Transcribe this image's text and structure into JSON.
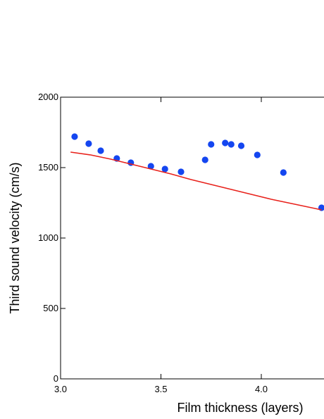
{
  "chart_data": {
    "type": "scatter",
    "xlabel": "Film thickness  (layers)",
    "ylabel": "Third sound velocity  (cm/s)",
    "xlim": [
      3.0,
      4.3
    ],
    "ylim": [
      0,
      2000
    ],
    "x_ticks": [
      3.0,
      3.5,
      4.0
    ],
    "x_tick_labels": [
      "3.0",
      "3.5",
      "4.0"
    ],
    "y_ticks": [
      0,
      500,
      1000,
      1500,
      2000
    ],
    "y_tick_labels": [
      "0",
      "500",
      "1000",
      "1500",
      "2000"
    ],
    "grid": false,
    "series": [
      {
        "mode": "markers",
        "color": "#1446f0",
        "points": [
          [
            3.07,
            1720
          ],
          [
            3.14,
            1670
          ],
          [
            3.2,
            1620
          ],
          [
            3.28,
            1565
          ],
          [
            3.35,
            1535
          ],
          [
            3.45,
            1510
          ],
          [
            3.52,
            1490
          ],
          [
            3.6,
            1470
          ],
          [
            3.72,
            1555
          ],
          [
            3.75,
            1665
          ],
          [
            3.82,
            1675
          ],
          [
            3.85,
            1665
          ],
          [
            3.9,
            1655
          ],
          [
            3.98,
            1590
          ],
          [
            4.11,
            1465
          ],
          [
            4.3,
            1215
          ]
        ]
      },
      {
        "mode": "line",
        "color": "#e8211b",
        "points": [
          [
            3.05,
            1610
          ],
          [
            3.15,
            1590
          ],
          [
            3.25,
            1560
          ],
          [
            3.35,
            1525
          ],
          [
            3.45,
            1490
          ],
          [
            3.55,
            1455
          ],
          [
            3.65,
            1415
          ],
          [
            3.75,
            1380
          ],
          [
            3.85,
            1345
          ],
          [
            3.95,
            1310
          ],
          [
            4.05,
            1275
          ],
          [
            4.15,
            1245
          ],
          [
            4.25,
            1215
          ],
          [
            4.3,
            1200
          ]
        ]
      }
    ]
  }
}
